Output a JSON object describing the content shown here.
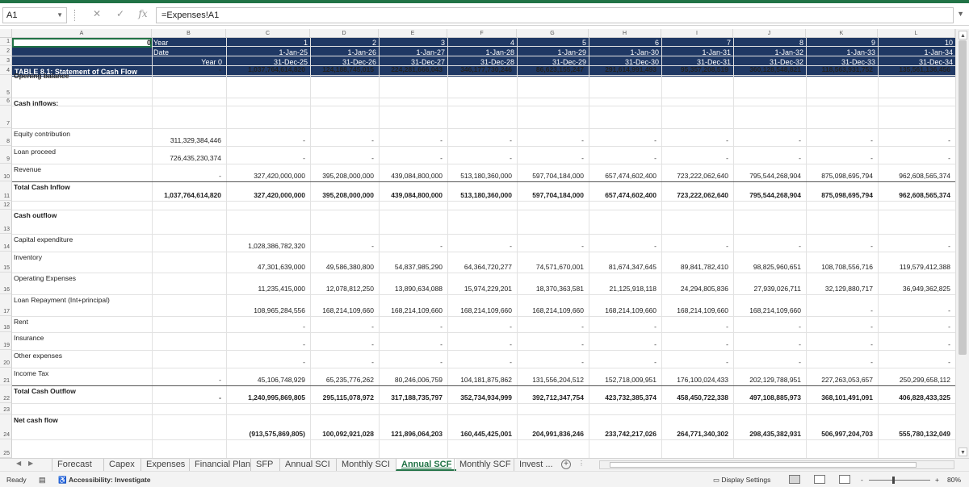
{
  "formula_bar": {
    "name_box": "A1",
    "formula": "=Expenses!A1",
    "fx_icon": "fx-icon",
    "cancel_icon": "x-icon",
    "enter_icon": "check-icon"
  },
  "columns": [
    "A",
    "B",
    "C",
    "D",
    "E",
    "F",
    "G",
    "H",
    "I",
    "J",
    "K",
    "L"
  ],
  "rows": [
    "1",
    "2",
    "3",
    "4",
    "5",
    "6",
    "7",
    "8",
    "9",
    "10",
    "11",
    "12",
    "13",
    "14",
    "15",
    "16",
    "17",
    "18",
    "19",
    "20",
    "21",
    "22",
    "23",
    "24",
    "25"
  ],
  "header": {
    "a1_value": "0",
    "year_label": "Year",
    "date_label": "Date",
    "year0": "Year 0",
    "table_title": "TABLE 8.1: Statement of Cash Flow",
    "years": [
      "1",
      "2",
      "3",
      "4",
      "5",
      "6",
      "7",
      "8",
      "9",
      "10"
    ],
    "starts": [
      "1-Jan-25",
      "1-Jan-26",
      "1-Jan-27",
      "1-Jan-28",
      "1-Jan-29",
      "1-Jan-30",
      "1-Jan-31",
      "1-Jan-32",
      "1-Jan-33",
      "1-Jan-34"
    ],
    "ends": [
      "31-Dec-25",
      "31-Dec-26",
      "31-Dec-27",
      "31-Dec-28",
      "31-Dec-29",
      "31-Dec-30",
      "31-Dec-31",
      "31-Dec-32",
      "31-Dec-33",
      "31-Dec-34"
    ]
  },
  "labels": {
    "opening_balance": "Opening balance",
    "cash_inflows": "Cash inflows:",
    "equity": "Equity contribution",
    "loan": "Loan proceed",
    "revenue": "Revenue",
    "total_inflow": "Total Cash Inflow",
    "cash_outflow": "Cash outflow",
    "capex": "Capital expenditure",
    "inventory": "Inventory",
    "opex": "Operating Expenses",
    "loan_repay": "Loan Repayment (Int+principal)",
    "rent": "Rent",
    "insurance": "Insurance",
    "other": "Other expenses",
    "tax": "Income Tax",
    "total_outflow": "Total Cash Outflow",
    "net": "Net cash flow"
  },
  "values": {
    "opening": [
      "-",
      "1,037,764,614,820",
      "124,188,745,015",
      "224,281,666,043",
      "346,177,730,246",
      "86,623,155,247",
      "291,614,991,493",
      "95,357,208,519",
      "360,128,548,821",
      "118,563,931,752",
      "135,561,136,456"
    ],
    "equity": [
      "311,329,384,446",
      "-",
      "-",
      "-",
      "-",
      "-",
      "-",
      "-",
      "-",
      "-",
      "-"
    ],
    "loan": [
      "726,435,230,374",
      "-",
      "-",
      "-",
      "-",
      "-",
      "-",
      "-",
      "-",
      "-",
      "-"
    ],
    "revenue": [
      "-",
      "327,420,000,000",
      "395,208,000,000",
      "439,084,800,000",
      "513,180,360,000",
      "597,704,184,000",
      "657,474,602,400",
      "723,222,062,640",
      "795,544,268,904",
      "875,098,695,794",
      "962,608,565,374"
    ],
    "total_inflow": [
      "1,037,764,614,820",
      "327,420,000,000",
      "395,208,000,000",
      "439,084,800,000",
      "513,180,360,000",
      "597,704,184,000",
      "657,474,602,400",
      "723,222,062,640",
      "795,544,268,904",
      "875,098,695,794",
      "962,608,565,374"
    ],
    "capex": [
      "",
      "1,028,386,782,320",
      "-",
      "-",
      "-",
      "-",
      "-",
      "-",
      "-",
      "-",
      "-"
    ],
    "inventory": [
      "",
      "47,301,639,000",
      "49,586,380,800",
      "54,837,985,290",
      "64,364,720,277",
      "74,571,670,001",
      "81,674,347,645",
      "89,841,782,410",
      "98,825,960,651",
      "108,708,556,716",
      "119,579,412,388"
    ],
    "opex": [
      "",
      "11,235,415,000",
      "12,078,812,250",
      "13,890,634,088",
      "15,974,229,201",
      "18,370,363,581",
      "21,125,918,118",
      "24,294,805,836",
      "27,939,026,711",
      "32,129,880,717",
      "36,949,362,825"
    ],
    "loan_repay": [
      "",
      "108,965,284,556",
      "168,214,109,660",
      "168,214,109,660",
      "168,214,109,660",
      "168,214,109,660",
      "168,214,109,660",
      "168,214,109,660",
      "168,214,109,660",
      "-",
      "-"
    ],
    "rent": [
      "",
      "-",
      "-",
      "-",
      "-",
      "-",
      "-",
      "-",
      "-",
      "-",
      "-"
    ],
    "insurance": [
      "",
      "-",
      "-",
      "-",
      "-",
      "-",
      "-",
      "-",
      "-",
      "-",
      "-"
    ],
    "other": [
      "",
      "-",
      "-",
      "-",
      "-",
      "-",
      "-",
      "-",
      "-",
      "-",
      "-"
    ],
    "tax": [
      "-",
      "45,106,748,929",
      "65,235,776,262",
      "80,246,006,759",
      "104,181,875,862",
      "131,556,204,512",
      "152,718,009,951",
      "176,100,024,433",
      "202,129,788,951",
      "227,263,053,657",
      "250,299,658,112"
    ],
    "total_outflow": [
      "-",
      "1,240,995,869,805",
      "295,115,078,972",
      "317,188,735,797",
      "352,734,934,999",
      "392,712,347,754",
      "423,732,385,374",
      "458,450,722,338",
      "497,108,885,973",
      "368,101,491,091",
      "406,828,433,325"
    ],
    "net": [
      "",
      "(913,575,869,805)",
      "100,092,921,028",
      "121,896,064,203",
      "160,445,425,001",
      "204,991,836,246",
      "233,742,217,026",
      "264,771,340,302",
      "298,435,382,931",
      "506,997,204,703",
      "555,780,132,049"
    ]
  },
  "tabs": [
    "Forecast",
    "Capex",
    "Expenses",
    "Financial Plan",
    "SFP",
    "Annual SCI",
    "Monthly SCI",
    "Annual SCF",
    "Monthly SCF",
    "Invest ..."
  ],
  "active_tab": "Annual SCF",
  "status": {
    "ready": "Ready",
    "accessibility": "Accessibility: Investigate",
    "display_settings": "Display Settings",
    "zoom": "80%",
    "zoom_minus": "-",
    "zoom_plus": "+"
  }
}
